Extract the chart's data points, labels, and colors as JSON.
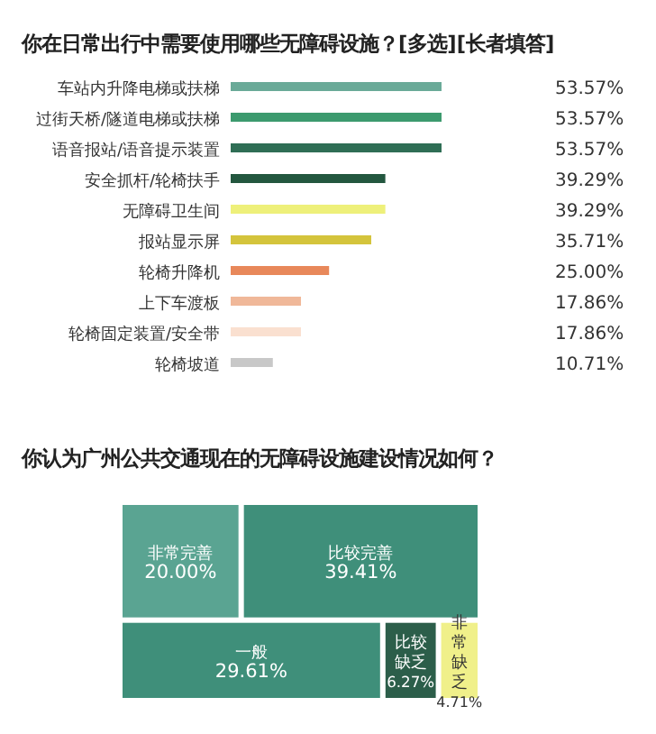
{
  "chart_data": [
    {
      "type": "bar",
      "orientation": "horizontal",
      "title": "你在日常出行中需要使用哪些无障碍设施？[多选][长者填答]",
      "categories": [
        "车站内升降电梯或扶梯",
        "过街天桥/隧道电梯或扶梯",
        "语音报站/语音提示装置",
        "安全抓杆/轮椅扶手",
        "无障碍卫生间",
        "报站显示屏",
        "轮椅升降机",
        "上下车渡板",
        "轮椅固定装置/安全带",
        "轮椅坡道"
      ],
      "values": [
        53.57,
        53.57,
        53.57,
        39.29,
        39.29,
        35.71,
        25.0,
        17.86,
        17.86,
        10.71
      ],
      "value_labels": [
        "53.57%",
        "53.57%",
        "53.57%",
        "39.29%",
        "39.29%",
        "35.71%",
        "25.00%",
        "17.86%",
        "17.86%",
        "10.71%"
      ],
      "colors": [
        "#6aaa98",
        "#3c9a6e",
        "#2f6e55",
        "#23573f",
        "#eef07a",
        "#d4c43c",
        "#e8885a",
        "#f0b899",
        "#fae0d0",
        "#c8c8c8"
      ]
    },
    {
      "type": "other",
      "title": "你认为广州公共交通现在的无障碍设施建设情况如何？",
      "categories": [
        "非常完善",
        "比较完善",
        "一般",
        "比较缺乏",
        "非常缺乏"
      ],
      "values": [
        20.0,
        39.41,
        29.61,
        6.27,
        4.71
      ],
      "value_labels": [
        "20.00%",
        "39.41%",
        "29.61%",
        "6.27%",
        "4.71%"
      ],
      "colors": [
        "#5aa492",
        "#3f8f7a",
        "#3f8f7a",
        "#2c5e4a",
        "#f0f08a"
      ]
    }
  ]
}
